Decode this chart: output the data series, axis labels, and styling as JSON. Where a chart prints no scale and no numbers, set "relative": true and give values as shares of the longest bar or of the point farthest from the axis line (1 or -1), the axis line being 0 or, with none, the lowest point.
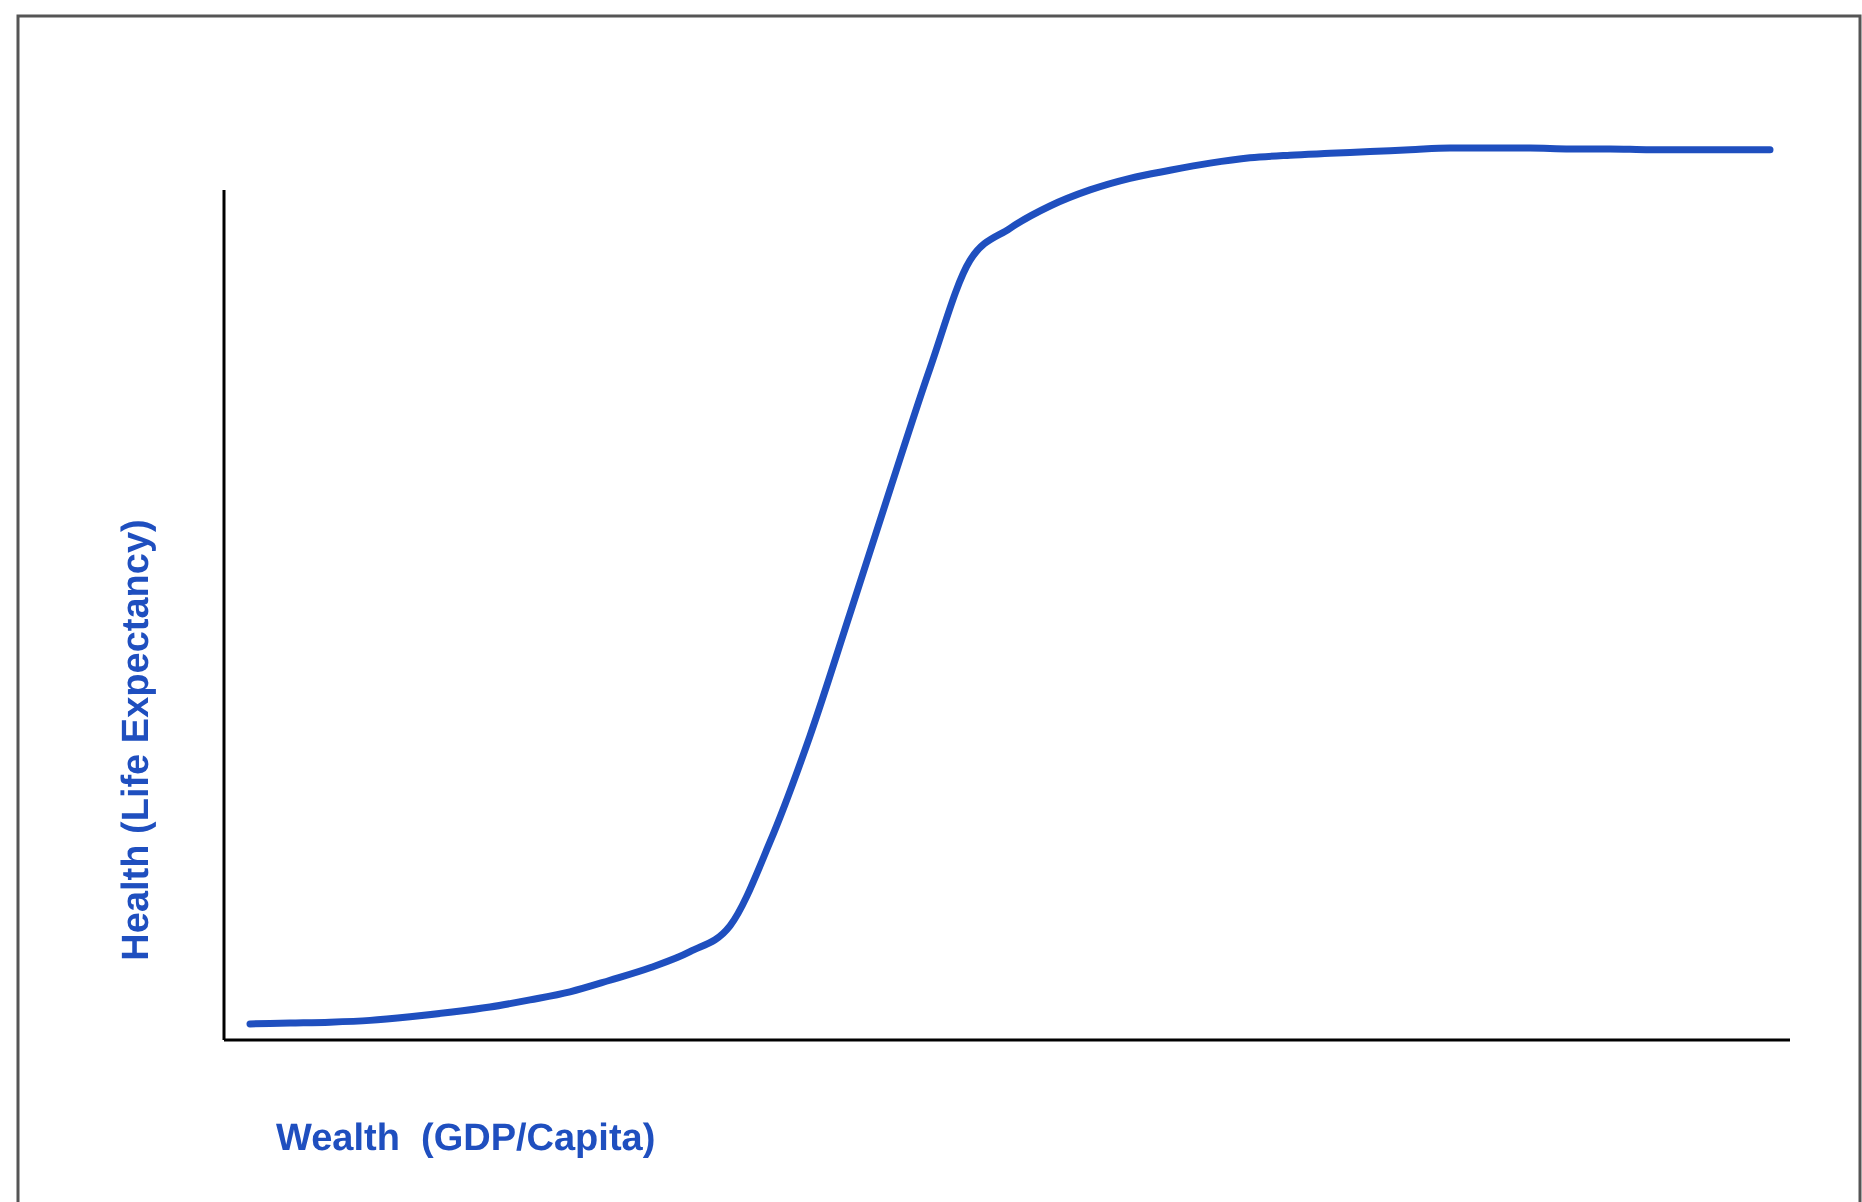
{
  "chart_data": {
    "type": "line",
    "relative": true,
    "xlabel": "Wealth  (GDP/Capita)",
    "ylabel": "Health (Life Expectancy)",
    "categories": [
      null,
      null,
      null,
      null,
      null,
      null,
      null,
      null,
      null,
      null,
      null,
      null,
      null,
      null,
      null,
      null,
      null,
      null,
      null,
      null,
      null,
      null,
      null,
      null,
      null,
      null,
      null,
      null,
      null,
      null,
      null,
      null,
      null,
      null,
      null,
      null,
      null,
      null,
      null
    ],
    "series": [
      {
        "color": "#1f4fbf",
        "values": [
          0.018,
          0.019,
          0.02,
          0.022,
          0.026,
          0.031,
          0.037,
          0.045,
          0.054,
          0.067,
          0.081,
          0.099,
          0.128,
          0.222,
          0.341,
          0.478,
          0.617,
          0.753,
          0.874,
          0.91,
          0.935,
          0.953,
          0.966,
          0.975,
          0.983,
          0.989,
          0.992,
          0.994,
          0.996,
          0.998,
          1,
          1,
          1,
          0.999,
          0.999,
          0.998,
          0.998,
          0.998,
          0.998
        ]
      }
    ],
    "marker": "none",
    "line_style": "solid"
  }
}
